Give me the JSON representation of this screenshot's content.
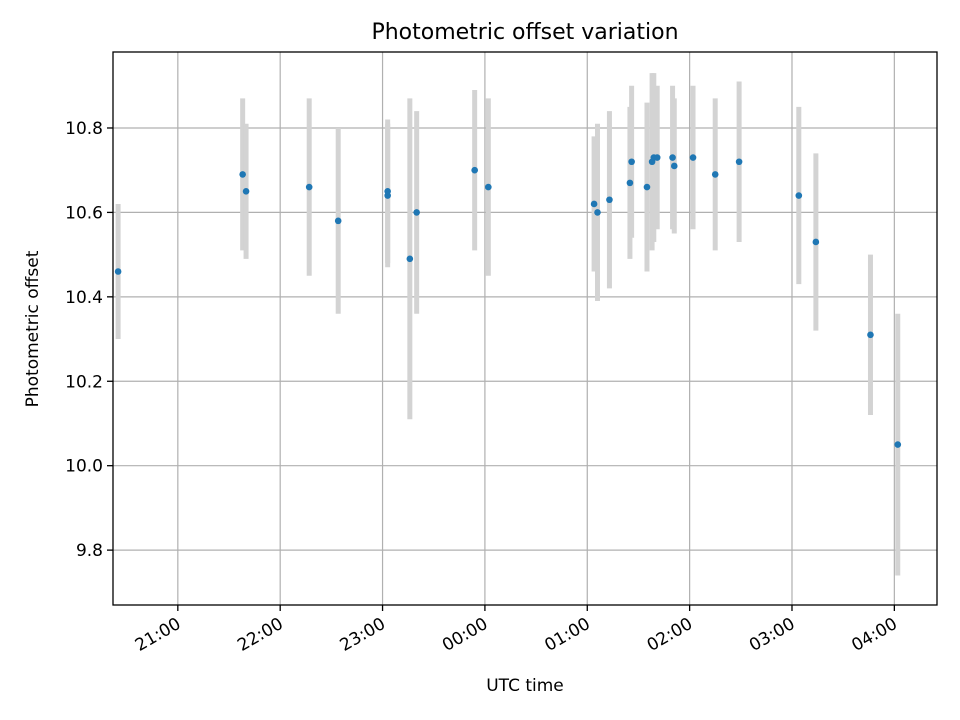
{
  "chart_data": {
    "type": "scatter",
    "title": "Photometric offset variation",
    "xlabel": "UTC time",
    "ylabel": "Photometric offset",
    "grid": true,
    "x_ticks": [
      "21:00",
      "22:00",
      "23:00",
      "00:00",
      "01:00",
      "02:00",
      "03:00",
      "04:00"
    ],
    "y_ticks": [
      "9.8",
      "10.0",
      "10.2",
      "10.4",
      "10.6",
      "10.8"
    ],
    "xlim": [
      "20:22",
      "04:25"
    ],
    "ylim": [
      9.67,
      10.98
    ],
    "marker_color": "#1f77b4",
    "errorbar_color": "#d3d3d3",
    "points": [
      {
        "x": "20:25",
        "y": 10.46,
        "err": 0.16
      },
      {
        "x": "21:38",
        "y": 10.69,
        "err": 0.18
      },
      {
        "x": "21:40",
        "y": 10.65,
        "err": 0.16
      },
      {
        "x": "22:17",
        "y": 10.66,
        "err": 0.21
      },
      {
        "x": "22:34",
        "y": 10.58,
        "err": 0.22
      },
      {
        "x": "23:03",
        "y": 10.64,
        "err": 0.17
      },
      {
        "x": "23:03",
        "y": 10.65,
        "err": 0.17
      },
      {
        "x": "23:16",
        "y": 10.49,
        "err": 0.38
      },
      {
        "x": "23:20",
        "y": 10.6,
        "err": 0.24
      },
      {
        "x": "23:54",
        "y": 10.7,
        "err": 0.19
      },
      {
        "x": "00:02",
        "y": 10.66,
        "err": 0.21
      },
      {
        "x": "01:04",
        "y": 10.62,
        "err": 0.16
      },
      {
        "x": "01:06",
        "y": 10.6,
        "err": 0.21
      },
      {
        "x": "01:13",
        "y": 10.63,
        "err": 0.21
      },
      {
        "x": "01:25",
        "y": 10.67,
        "err": 0.18
      },
      {
        "x": "01:26",
        "y": 10.72,
        "err": 0.18
      },
      {
        "x": "01:35",
        "y": 10.66,
        "err": 0.2
      },
      {
        "x": "01:38",
        "y": 10.72,
        "err": 0.21
      },
      {
        "x": "01:39",
        "y": 10.73,
        "err": 0.2
      },
      {
        "x": "01:41",
        "y": 10.73,
        "err": 0.17
      },
      {
        "x": "01:50",
        "y": 10.73,
        "err": 0.17
      },
      {
        "x": "01:51",
        "y": 10.71,
        "err": 0.16
      },
      {
        "x": "02:02",
        "y": 10.73,
        "err": 0.17
      },
      {
        "x": "02:15",
        "y": 10.69,
        "err": 0.18
      },
      {
        "x": "02:29",
        "y": 10.72,
        "err": 0.19
      },
      {
        "x": "03:04",
        "y": 10.64,
        "err": 0.21
      },
      {
        "x": "03:14",
        "y": 10.53,
        "err": 0.21
      },
      {
        "x": "03:46",
        "y": 10.31,
        "err": 0.19
      },
      {
        "x": "04:02",
        "y": 10.05,
        "err": 0.31
      }
    ]
  }
}
